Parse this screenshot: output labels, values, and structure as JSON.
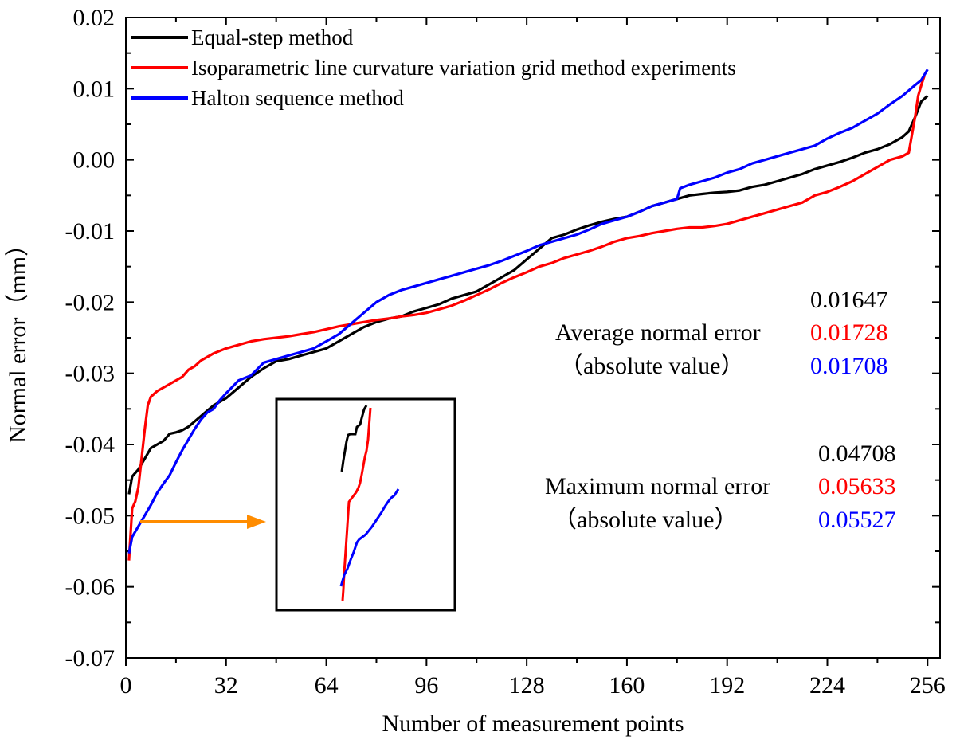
{
  "chart_data": {
    "type": "line",
    "title": "",
    "xlabel": "Number of measurement points",
    "ylabel": "Normal error（mm）",
    "xlim": [
      0,
      260
    ],
    "ylim": [
      -0.07,
      0.02
    ],
    "xticks": [
      0,
      32,
      64,
      96,
      128,
      160,
      192,
      224,
      256
    ],
    "xtick_labels": [
      "0",
      "32",
      "64",
      "96",
      "128",
      "160",
      "192",
      "224",
      "256"
    ],
    "yticks": [
      -0.07,
      -0.06,
      -0.05,
      -0.04,
      -0.03,
      -0.02,
      -0.01,
      0.0,
      0.01,
      0.02
    ],
    "ytick_labels": [
      "-0.07",
      "-0.06",
      "-0.05",
      "-0.04",
      "-0.03",
      "-0.02",
      "-0.01",
      "0.00",
      "0.01",
      "0.02"
    ],
    "legend_position": "top-left",
    "series": [
      {
        "name": "Equal-step method",
        "color": "#000000",
        "x": [
          1,
          2,
          4,
          6,
          8,
          10,
          12,
          14,
          16,
          18,
          20,
          24,
          28,
          32,
          36,
          40,
          44,
          48,
          52,
          56,
          60,
          64,
          68,
          72,
          76,
          80,
          84,
          88,
          92,
          96,
          100,
          104,
          108,
          112,
          116,
          120,
          124,
          128,
          132,
          136,
          140,
          144,
          148,
          152,
          156,
          160,
          164,
          168,
          172,
          176,
          180,
          184,
          188,
          192,
          196,
          200,
          204,
          208,
          212,
          216,
          220,
          224,
          228,
          232,
          236,
          240,
          244,
          248,
          250,
          252,
          254,
          256
        ],
        "y": [
          -0.047,
          -0.0445,
          -0.0435,
          -0.042,
          -0.0405,
          -0.04,
          -0.0395,
          -0.0385,
          -0.0383,
          -0.038,
          -0.0375,
          -0.036,
          -0.0345,
          -0.0335,
          -0.032,
          -0.0305,
          -0.0293,
          -0.0283,
          -0.028,
          -0.0275,
          -0.027,
          -0.0265,
          -0.0255,
          -0.0245,
          -0.0235,
          -0.0228,
          -0.0223,
          -0.022,
          -0.0213,
          -0.0208,
          -0.0203,
          -0.0195,
          -0.019,
          -0.0185,
          -0.0175,
          -0.0165,
          -0.0155,
          -0.014,
          -0.0125,
          -0.011,
          -0.0105,
          -0.0098,
          -0.0092,
          -0.0087,
          -0.0083,
          -0.008,
          -0.0073,
          -0.0065,
          -0.006,
          -0.0055,
          -0.005,
          -0.0048,
          -0.0046,
          -0.0045,
          -0.0043,
          -0.0038,
          -0.0035,
          -0.003,
          -0.0025,
          -0.002,
          -0.0013,
          -0.0008,
          -0.0003,
          0.0003,
          0.001,
          0.0015,
          0.0022,
          0.0032,
          0.004,
          0.006,
          0.0082,
          0.009
        ]
      },
      {
        "name": "Isoparametric line curvature variation grid method experiments",
        "color": "#ff0000",
        "x": [
          1,
          2,
          3,
          4,
          5,
          6,
          7,
          8,
          10,
          12,
          14,
          16,
          18,
          20,
          22,
          24,
          28,
          32,
          36,
          40,
          44,
          48,
          52,
          56,
          60,
          64,
          68,
          72,
          76,
          80,
          84,
          88,
          92,
          96,
          100,
          104,
          108,
          112,
          116,
          120,
          124,
          128,
          132,
          136,
          140,
          144,
          148,
          152,
          156,
          160,
          164,
          168,
          172,
          176,
          180,
          184,
          188,
          192,
          196,
          200,
          204,
          208,
          212,
          216,
          220,
          224,
          228,
          232,
          236,
          240,
          244,
          248,
          250,
          252,
          253,
          254,
          255
        ],
        "y": [
          -0.0563,
          -0.049,
          -0.048,
          -0.046,
          -0.042,
          -0.038,
          -0.0345,
          -0.0333,
          -0.0325,
          -0.032,
          -0.0315,
          -0.031,
          -0.0305,
          -0.0295,
          -0.029,
          -0.0282,
          -0.0272,
          -0.0265,
          -0.026,
          -0.0255,
          -0.0252,
          -0.025,
          -0.0248,
          -0.0245,
          -0.0242,
          -0.0238,
          -0.0234,
          -0.0231,
          -0.0228,
          -0.0225,
          -0.0223,
          -0.022,
          -0.0218,
          -0.0215,
          -0.021,
          -0.0205,
          -0.0198,
          -0.019,
          -0.0182,
          -0.0173,
          -0.0165,
          -0.0158,
          -0.015,
          -0.0145,
          -0.0138,
          -0.0133,
          -0.0128,
          -0.0122,
          -0.0115,
          -0.011,
          -0.0107,
          -0.0103,
          -0.01,
          -0.0097,
          -0.0095,
          -0.0095,
          -0.0093,
          -0.009,
          -0.0085,
          -0.008,
          -0.0075,
          -0.007,
          -0.0065,
          -0.006,
          -0.005,
          -0.0045,
          -0.0038,
          -0.003,
          -0.002,
          -0.001,
          0.0,
          0.0005,
          0.001,
          0.006,
          0.009,
          0.0105,
          0.0118
        ]
      },
      {
        "name": "Halton sequence method",
        "color": "#0000ff",
        "x": [
          1,
          2,
          4,
          6,
          8,
          10,
          12,
          14,
          16,
          18,
          20,
          22,
          24,
          26,
          28,
          30,
          32,
          36,
          40,
          44,
          48,
          52,
          56,
          60,
          64,
          68,
          72,
          76,
          80,
          84,
          88,
          92,
          96,
          100,
          104,
          108,
          112,
          116,
          120,
          124,
          128,
          132,
          136,
          140,
          144,
          148,
          152,
          156,
          160,
          164,
          168,
          172,
          176,
          177,
          180,
          184,
          188,
          192,
          196,
          200,
          204,
          208,
          212,
          216,
          220,
          224,
          228,
          232,
          236,
          240,
          244,
          248,
          252,
          254,
          256
        ],
        "y": [
          -0.0553,
          -0.053,
          -0.0515,
          -0.05,
          -0.0485,
          -0.0468,
          -0.0455,
          -0.0443,
          -0.0425,
          -0.0408,
          -0.0393,
          -0.0378,
          -0.0365,
          -0.0355,
          -0.035,
          -0.0338,
          -0.0328,
          -0.031,
          -0.0303,
          -0.0285,
          -0.028,
          -0.0275,
          -0.027,
          -0.0265,
          -0.0255,
          -0.0245,
          -0.023,
          -0.0215,
          -0.02,
          -0.019,
          -0.0183,
          -0.0178,
          -0.0173,
          -0.0168,
          -0.0163,
          -0.0158,
          -0.0153,
          -0.0148,
          -0.0142,
          -0.0135,
          -0.0128,
          -0.012,
          -0.0115,
          -0.011,
          -0.0105,
          -0.0098,
          -0.009,
          -0.0085,
          -0.008,
          -0.0073,
          -0.0065,
          -0.006,
          -0.0055,
          -0.004,
          -0.0035,
          -0.003,
          -0.0025,
          -0.0018,
          -0.0013,
          -0.0005,
          0.0,
          0.0005,
          0.001,
          0.0015,
          0.002,
          0.003,
          0.0038,
          0.0045,
          0.0055,
          0.0065,
          0.0078,
          0.009,
          0.0105,
          0.0112,
          0.0127
        ]
      }
    ],
    "annotations": {
      "average": {
        "label_line1": "Average normal error",
        "label_line2": "（absolute value）",
        "values": [
          "0.01647",
          "0.01728",
          "0.01708"
        ],
        "colors": [
          "#000000",
          "#ff0000",
          "#0000ff"
        ]
      },
      "maximum": {
        "label_line1": "Maximum normal error",
        "label_line2": "（absolute value）",
        "values": [
          "0.04708",
          "0.05633",
          "0.05527"
        ],
        "colors": [
          "#000000",
          "#ff0000",
          "#0000ff"
        ]
      },
      "inset": {
        "arrow_color": "#ff8c00",
        "description": "zoom"
      }
    }
  }
}
